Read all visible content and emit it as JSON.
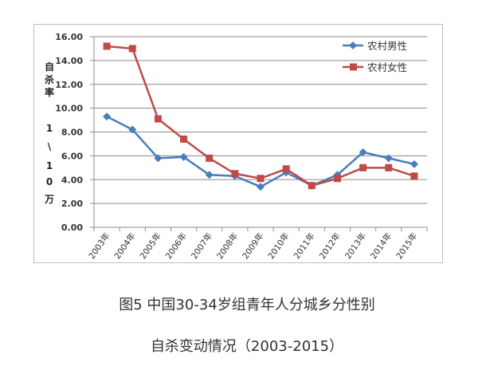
{
  "chart_data": {
    "type": "line",
    "title": "",
    "xlabel": "",
    "ylabel_chars": [
      "自",
      "杀",
      "率",
      "1",
      "\\",
      "1",
      "0",
      "万"
    ],
    "ylabel": "自杀率 1\\10万",
    "ylim": [
      0,
      16
    ],
    "yticks": [
      "0.00",
      "2.00",
      "4.00",
      "6.00",
      "8.00",
      "10.00",
      "12.00",
      "14.00",
      "16.00"
    ],
    "grid": true,
    "legend_position": "top-right",
    "categories": [
      "2003年",
      "2004年",
      "2005年",
      "2006年",
      "2007年",
      "2008年",
      "2009年",
      "2010年",
      "2011年",
      "2012年",
      "2013年",
      "2014年",
      "2015年"
    ],
    "series": [
      {
        "name": "农村男性",
        "color": "#4a7ebb",
        "marker": "diamond",
        "values": [
          9.3,
          8.2,
          5.8,
          5.9,
          4.4,
          4.3,
          3.4,
          4.6,
          3.5,
          4.4,
          6.3,
          5.8,
          5.3
        ]
      },
      {
        "name": "农村女性",
        "color": "#be4b48",
        "marker": "square",
        "values": [
          15.2,
          15.0,
          9.1,
          7.4,
          5.8,
          4.5,
          4.1,
          4.9,
          3.5,
          4.1,
          5.0,
          5.0,
          4.3
        ]
      }
    ]
  },
  "caption": {
    "line1": "图5 中国30-34岁组青年人分城乡分性别",
    "line2": "自杀变动情况（2003-2015）"
  }
}
